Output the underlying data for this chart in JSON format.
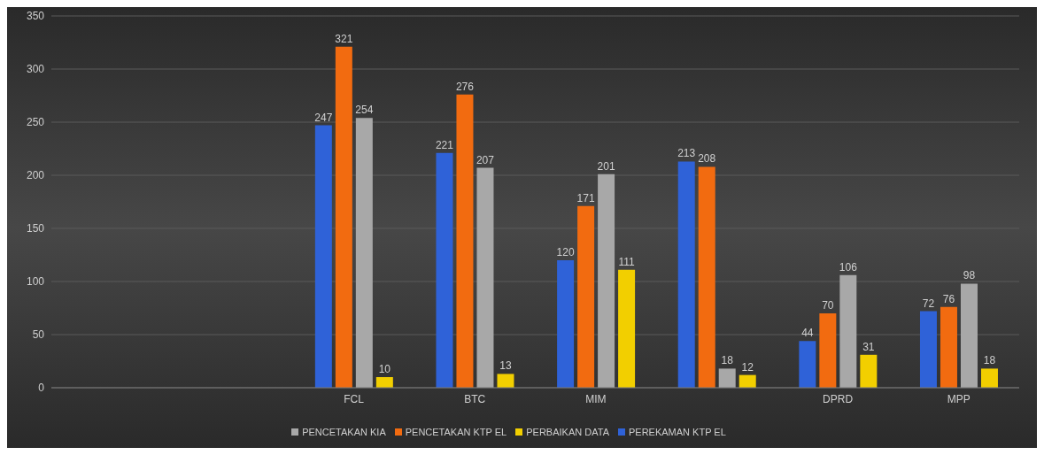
{
  "chart_data": {
    "type": "bar",
    "categories": [
      null,
      null,
      "FCL",
      "BTC",
      "MIM",
      null,
      "DPRD",
      "MPP"
    ],
    "series": [
      {
        "name": "PEREKAMAN KTP EL",
        "color": "#2f62d8",
        "values": [
          null,
          null,
          247,
          221,
          120,
          213,
          44,
          72
        ]
      },
      {
        "name": "PENCETAKAN KTP EL",
        "color": "#f26b10",
        "values": [
          null,
          null,
          321,
          276,
          171,
          208,
          70,
          76
        ]
      },
      {
        "name": "PENCETAKAN KIA",
        "color": "#a8a8a8",
        "values": [
          null,
          null,
          254,
          207,
          201,
          18,
          106,
          98
        ]
      },
      {
        "name": "PERBAIKAN DATA",
        "color": "#f2cf00",
        "values": [
          null,
          null,
          10,
          13,
          111,
          12,
          31,
          18
        ]
      }
    ],
    "ylim": [
      0,
      350
    ],
    "yticks": [
      0,
      50,
      100,
      150,
      200,
      250,
      300,
      350
    ],
    "grid": "y",
    "legend": "bottom",
    "data_labels": true
  }
}
